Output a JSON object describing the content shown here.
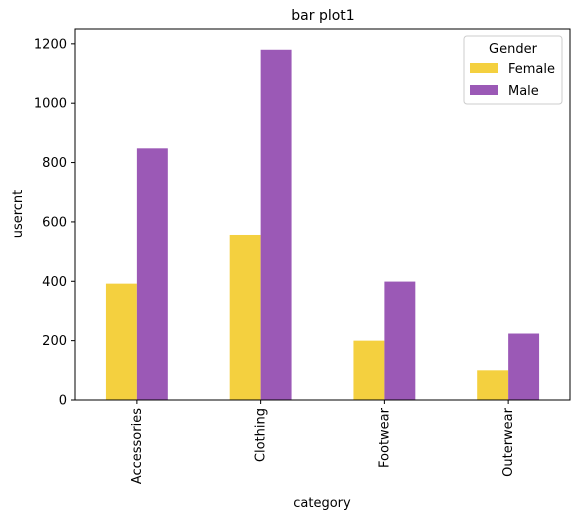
{
  "chart_data": {
    "type": "bar",
    "title": "bar plot1",
    "xlabel": "category",
    "ylabel": "usercnt",
    "categories": [
      "Accessories",
      "Clothing",
      "Footwear",
      "Outerwear"
    ],
    "series": [
      {
        "name": "Female",
        "values": [
          392,
          556,
          200,
          100
        ],
        "color": "#f4d03f"
      },
      {
        "name": "Male",
        "values": [
          848,
          1180,
          399,
          224
        ],
        "color": "#9b59b6"
      }
    ],
    "ylim": [
      0,
      1250
    ],
    "yticks": [
      0,
      200,
      400,
      600,
      800,
      1000,
      1200
    ],
    "ytick_labels": [
      "0",
      "200",
      "400",
      "600",
      "800",
      "1000",
      "1200"
    ],
    "legend": {
      "title": "Gender",
      "position": "upper right"
    },
    "grid": false
  }
}
